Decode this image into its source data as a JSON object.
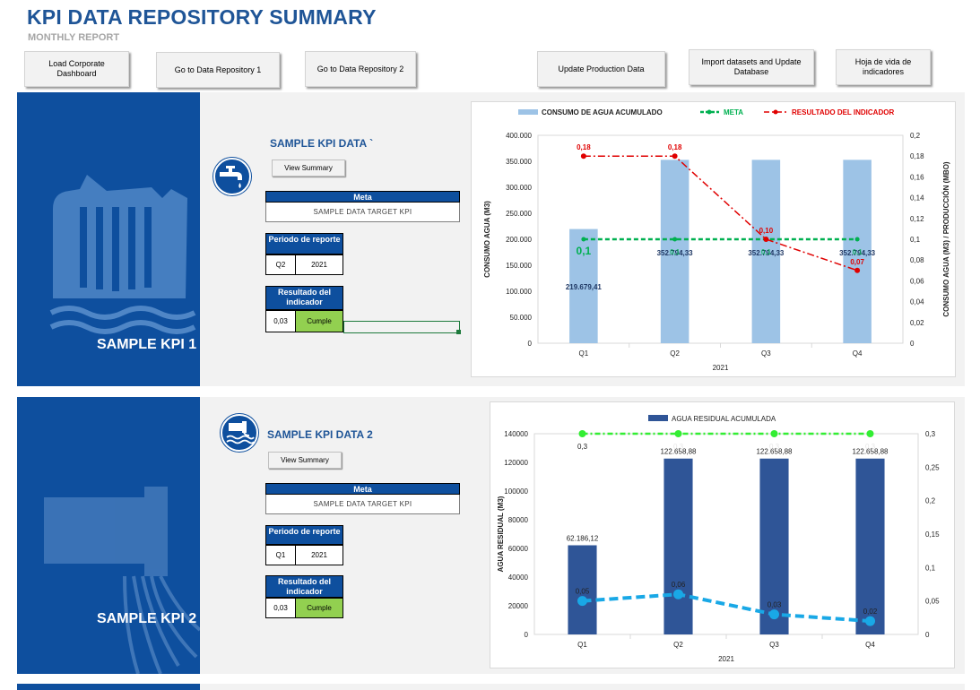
{
  "header": {
    "title": "KPI DATA REPOSITORY SUMMARY",
    "subtitle": "MONTHLY REPORT"
  },
  "toolbar": {
    "load_dashboard": "Load Corporate Dashboard",
    "repo1": "Go to Data Repository 1",
    "repo2": "Go to Data Repository 2",
    "update_production": "Update Production Data",
    "import_datasets": "Import datasets and Update Database",
    "hoja_vida": "Hoja de vida de indicadores"
  },
  "kpi1": {
    "side_label": "SAMPLE KPI 1",
    "heading": "SAMPLE KPI DATA `",
    "view_summary": "View Summary",
    "meta_label": "Meta",
    "meta_value": "SAMPLE DATA TARGET KPI",
    "periodo_label": "Periodo de reporte",
    "periodo_q": "Q2",
    "periodo_year": "2021",
    "resultado_label": "Resultado del indicador",
    "resultado_value": "0,03",
    "resultado_status": "Cumple"
  },
  "kpi2": {
    "side_label": "SAMPLE KPI 2",
    "heading": "SAMPLE KPI DATA 2",
    "view_summary": "View Summary",
    "meta_label": "Meta",
    "meta_value": "SAMPLE DATA TARGET KPI",
    "periodo_label": "Periodo de reporte",
    "periodo_q": "Q1",
    "periodo_year": "2021",
    "resultado_label": "Resultado del indicador",
    "resultado_value": "0,03",
    "resultado_status": "Cumple"
  },
  "chart_data": [
    {
      "type": "bar",
      "categories": [
        "Q1",
        "Q2",
        "Q3",
        "Q4"
      ],
      "xlabel": "2021",
      "ylabel": "CONSUMO AGUA (M3)",
      "y2label": "CONSUMO AGUA (M3) / PRODUCCIÓN (MBO)",
      "ylim": [
        0,
        400000
      ],
      "y2lim": [
        0,
        0.2
      ],
      "yticks": [
        "0",
        "50.000",
        "100.000",
        "150.000",
        "200.000",
        "250.000",
        "300.000",
        "350.000",
        "400.000"
      ],
      "y2ticks": [
        "0",
        "0,02",
        "0,04",
        "0,06",
        "0,08",
        "0,1",
        "0,12",
        "0,14",
        "0,16",
        "0,18",
        "0,2"
      ],
      "series": [
        {
          "name": "CONSUMO DE AGUA ACUMULADO",
          "kind": "bar",
          "axis": "left",
          "color": "#9dc3e6",
          "values": [
            219679.41,
            352794.33,
            352794.33,
            352794.33
          ],
          "labels": [
            "219.679,41",
            "352.794,33",
            "352.794,33",
            "352.794,33"
          ]
        },
        {
          "name": "META",
          "kind": "line",
          "axis": "right",
          "color": "#00b050",
          "values": [
            0.1,
            0.1,
            0.1,
            0.1
          ],
          "labels": [
            "0,1",
            "0,1",
            "0,1",
            "0,1"
          ]
        },
        {
          "name": "RESULTADO DEL INDICADOR",
          "kind": "line",
          "axis": "right",
          "color": "#e00000",
          "values": [
            0.18,
            0.18,
            0.1,
            0.07
          ],
          "labels": [
            "0,18",
            "0,18",
            "0,10",
            "0,07"
          ]
        }
      ],
      "legend": "top"
    },
    {
      "type": "bar",
      "categories": [
        "Q1",
        "Q2",
        "Q3",
        "Q4"
      ],
      "xlabel": "2021",
      "ylabel": "AGUA RESIDUAL (M3)",
      "ylim": [
        0,
        140000
      ],
      "y2lim": [
        0,
        0.3
      ],
      "yticks": [
        "0",
        "20000",
        "40000",
        "60000",
        "80000",
        "100000",
        "120000",
        "140000"
      ],
      "y2ticks": [
        "0",
        "0,05",
        "0,1",
        "0,15",
        "0,2",
        "0,25",
        "0,3"
      ],
      "series": [
        {
          "name": "AGUA RESIDUAL ACUMULADA",
          "kind": "bar",
          "axis": "left",
          "color": "#2f5597",
          "values": [
            62186.12,
            122658.88,
            122658.88,
            122658.88
          ],
          "labels": [
            "62.186,12",
            "122.658,88",
            "122.658,88",
            "122.658,88"
          ]
        },
        {
          "kind": "line",
          "axis": "right",
          "color": "#33ee33",
          "values": [
            0.3,
            0.3,
            0.3,
            0.3
          ],
          "labels": [
            "0,3",
            "0,3",
            "0,3",
            "0,3"
          ]
        },
        {
          "kind": "line",
          "axis": "right",
          "color": "#19a8e6",
          "values": [
            0.05,
            0.06,
            0.03,
            0.02
          ],
          "labels": [
            "0,05",
            "0,06",
            "0,03",
            "0,02"
          ]
        }
      ],
      "legend": "top"
    }
  ]
}
